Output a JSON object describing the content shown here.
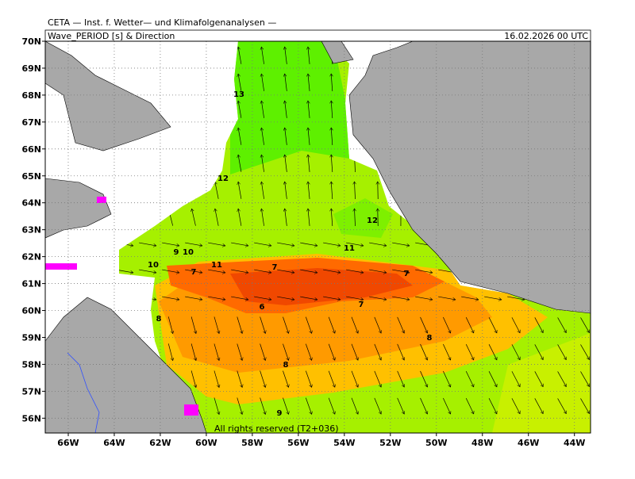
{
  "header": {
    "title": "CETA — Inst. f. Wetter— und Klimafolgenanalysen —",
    "subtitle": "Wave_PERIOD [s] & Direction",
    "date": "16.02.2026 00 UTC"
  },
  "map": {
    "xlim": [
      -67,
      -43.3
    ],
    "ylim": [
      55.45,
      70
    ],
    "xticks": [
      {
        "value": -66,
        "label": "66W"
      },
      {
        "value": -64,
        "label": "64W"
      },
      {
        "value": -62,
        "label": "62W"
      },
      {
        "value": -60,
        "label": "60W"
      },
      {
        "value": -58,
        "label": "58W"
      },
      {
        "value": -56,
        "label": "56W"
      },
      {
        "value": -54,
        "label": "54W"
      },
      {
        "value": -52,
        "label": "52W"
      },
      {
        "value": -50,
        "label": "50W"
      },
      {
        "value": -48,
        "label": "48W"
      },
      {
        "value": -46,
        "label": "46W"
      },
      {
        "value": -44,
        "label": "44W"
      }
    ],
    "yticks": [
      {
        "value": 70,
        "label": "70N"
      },
      {
        "value": 69,
        "label": "69N"
      },
      {
        "value": 68,
        "label": "68N"
      },
      {
        "value": 67,
        "label": "67N"
      },
      {
        "value": 66,
        "label": "66N"
      },
      {
        "value": 65,
        "label": "65N"
      },
      {
        "value": 64,
        "label": "64N"
      },
      {
        "value": 63,
        "label": "63N"
      },
      {
        "value": 62,
        "label": "62N"
      },
      {
        "value": 61,
        "label": "61N"
      },
      {
        "value": 60,
        "label": "60N"
      },
      {
        "value": 59,
        "label": "59N"
      },
      {
        "value": 58,
        "label": "58N"
      },
      {
        "value": 57,
        "label": "57N"
      },
      {
        "value": 56,
        "label": "56N"
      }
    ]
  },
  "contour_labels": [
    "13",
    "12",
    "12",
    "11",
    "10",
    "9",
    "10",
    "11",
    "7",
    "7",
    "7",
    "6",
    "7",
    "8",
    "8",
    "8",
    "9"
  ],
  "footer": {
    "copyright": "All rights reserved (T2+036)"
  }
}
